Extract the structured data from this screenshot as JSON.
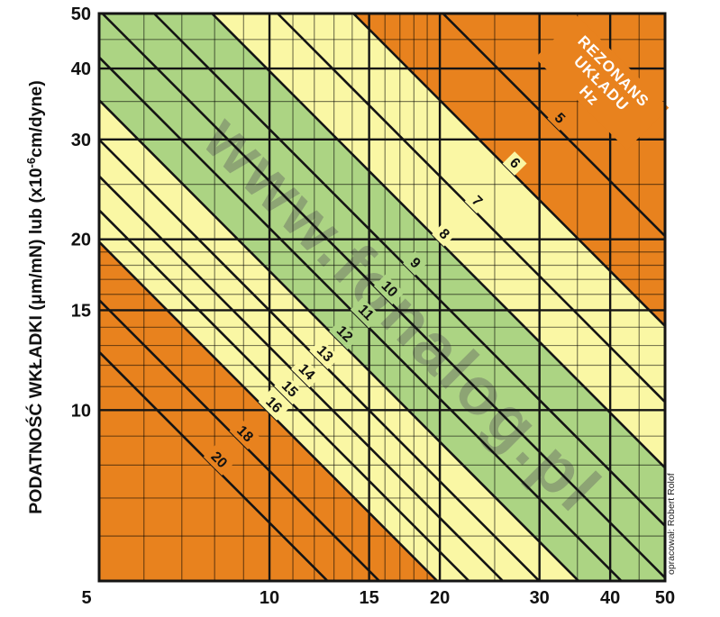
{
  "chart_data": {
    "type": "line",
    "subtype": "tonearm-cartridge-resonance-nomogram",
    "x_axis": {
      "scale": "log",
      "min": 5,
      "max": 50,
      "major_ticks": [
        5,
        10,
        15,
        20,
        30,
        40,
        50
      ],
      "minor_ticks": [
        6,
        7,
        8,
        9,
        11,
        12,
        13,
        14,
        16,
        17,
        18,
        19,
        25,
        35,
        45
      ],
      "tick_labels": [
        "5",
        "10",
        "15",
        "20",
        "30",
        "40",
        "50"
      ]
    },
    "y_axis": {
      "scale": "log",
      "min": 5,
      "max": 50,
      "major_ticks": [
        5,
        10,
        15,
        20,
        30,
        40,
        50
      ],
      "minor_ticks": [
        6,
        7,
        8,
        9,
        11,
        12,
        13,
        14,
        16,
        17,
        18,
        19,
        25,
        35,
        45
      ],
      "tick_labels": [
        "50",
        "40",
        "30",
        "20",
        "15",
        "10"
      ],
      "title_main": "PODATNOŚĆ WKŁADKI (μm/mN) lub (x10",
      "title_sup": "-6",
      "title_tail": "cm/dyne)"
    },
    "resonance_lines": [
      {
        "f": 5,
        "label": "5",
        "label_bg": "orange"
      },
      {
        "f": 6,
        "label": "6",
        "label_bg": "yellow"
      },
      {
        "f": 7,
        "label": "7",
        "label_bg": "yellow"
      },
      {
        "f": 8,
        "label": "8",
        "label_bg": "yellow"
      },
      {
        "f": 9,
        "label": "9",
        "label_bg": "green"
      },
      {
        "f": 10,
        "label": "10",
        "label_bg": "green"
      },
      {
        "f": 11,
        "label": "11",
        "label_bg": "green"
      },
      {
        "f": 12,
        "label": "12",
        "label_bg": "green"
      },
      {
        "f": 13,
        "label": "13",
        "label_bg": "yellow"
      },
      {
        "f": 14,
        "label": "14",
        "label_bg": "yellow"
      },
      {
        "f": 15,
        "label": "15",
        "label_bg": "yellow"
      },
      {
        "f": 16,
        "label": "16",
        "label_bg": "yellow"
      },
      {
        "f": 18,
        "label": "18",
        "label_bg": "orange"
      },
      {
        "f": 20,
        "label": "20",
        "label_bg": "orange"
      }
    ],
    "zones": [
      {
        "range_hz": "powyżej 16 Hz (dolny-lewy róg)",
        "color_key": "orange"
      },
      {
        "range_hz": "12–16 Hz",
        "color_key": "yellow"
      },
      {
        "range_hz": "8–12 Hz",
        "color_key": "green"
      },
      {
        "range_hz": "6–8 Hz",
        "color_key": "yellow"
      },
      {
        "range_hz": "poniżej 6 Hz (górny-prawy róg)",
        "color_key": "orange"
      },
      {
        "note": "base fill is orange; overlays drawn for resonance below boundary f"
      }
    ],
    "zone_overlays": [
      {
        "f": 16,
        "color_key": "yellow"
      },
      {
        "f": 12,
        "color_key": "green"
      },
      {
        "f": 8,
        "color_key": "yellow"
      },
      {
        "f": 6,
        "color_key": "orange"
      }
    ],
    "corner_label": {
      "lines": [
        "REZONANS",
        "UKŁADU",
        "Hz"
      ],
      "color": "#ffffff"
    }
  },
  "watermark": {
    "text": "www.fonalog.pl"
  },
  "credit": {
    "text": "opracował: Robert Rolof"
  },
  "colors": {
    "orange": "#E8821E",
    "yellow": "#FAF7A4",
    "green": "#ACD483",
    "line": "#141414",
    "grid_minor": "rgba(0,0,0,0.5)",
    "text": "#111111",
    "watermark": "#5f5f5f"
  }
}
